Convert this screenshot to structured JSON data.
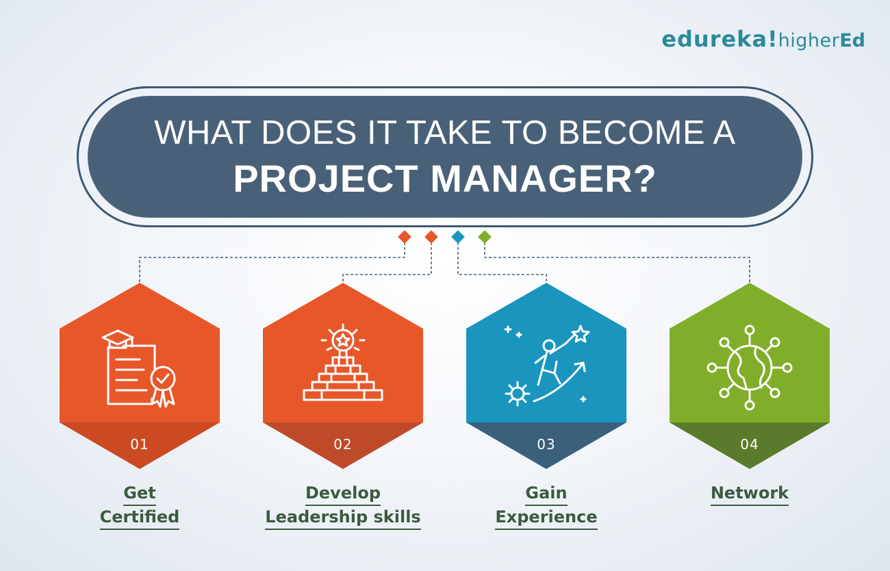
{
  "logo": {
    "brand": "edureka!",
    "sub": "higher",
    "sub_bold": "Ed"
  },
  "title": {
    "line1": "WHAT DOES IT TAKE TO BECOME A",
    "line2": "PROJECT MANAGER?"
  },
  "colors": {
    "banner": "#496178",
    "orange": "#e8572a",
    "blue": "#1a95bd",
    "green": "#80ae2a",
    "label_text": "#3d5a3e"
  },
  "steps": [
    {
      "number": "01",
      "label_line1": "Get",
      "label_line2": "Certified",
      "color": "#e8572a",
      "icon": "certificate-icon"
    },
    {
      "number": "02",
      "label_line1": "Develop",
      "label_line2": "Leadership skills",
      "color": "#e8572a",
      "icon": "leadership-icon"
    },
    {
      "number": "03",
      "label_line1": "Gain",
      "label_line2": "Experience",
      "color": "#1a95bd",
      "icon": "experience-icon"
    },
    {
      "number": "04",
      "label_line1": "Network",
      "label_line2": "",
      "color": "#80ae2a",
      "icon": "network-icon"
    }
  ]
}
